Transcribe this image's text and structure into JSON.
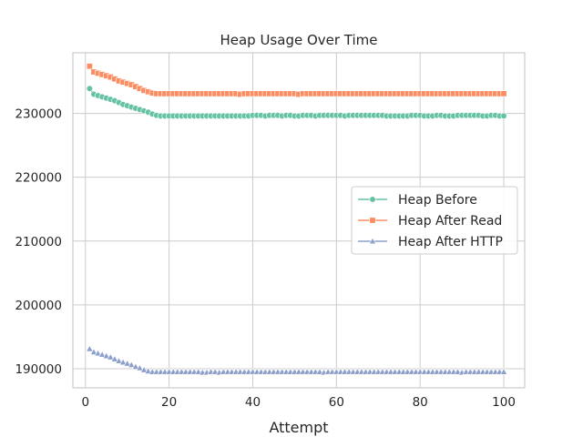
{
  "chart_data": {
    "type": "line",
    "title": "Heap Usage Over Time",
    "xlabel": "Attempt",
    "ylabel": "",
    "xlim": [
      -3,
      105
    ],
    "ylim": [
      187000,
      239500
    ],
    "x_ticks": [
      0,
      20,
      40,
      60,
      80,
      100
    ],
    "y_ticks": [
      190000,
      200000,
      210000,
      220000,
      230000
    ],
    "grid": true,
    "legend_position": "center-right",
    "x": [
      1,
      2,
      3,
      4,
      5,
      6,
      7,
      8,
      9,
      10,
      11,
      12,
      13,
      14,
      15,
      16,
      17,
      18,
      19,
      20,
      21,
      22,
      23,
      24,
      25,
      26,
      27,
      28,
      29,
      30,
      31,
      32,
      33,
      34,
      35,
      36,
      37,
      38,
      39,
      40,
      41,
      42,
      43,
      44,
      45,
      46,
      47,
      48,
      49,
      50,
      51,
      52,
      53,
      54,
      55,
      56,
      57,
      58,
      59,
      60,
      61,
      62,
      63,
      64,
      65,
      66,
      67,
      68,
      69,
      70,
      71,
      72,
      73,
      74,
      75,
      76,
      77,
      78,
      79,
      80,
      81,
      82,
      83,
      84,
      85,
      86,
      87,
      88,
      89,
      90,
      91,
      92,
      93,
      94,
      95,
      96,
      97,
      98,
      99,
      100
    ],
    "series": [
      {
        "name": "Heap Before",
        "color": "#66c2a5",
        "marker": "circle",
        "values": [
          233900,
          233000,
          232800,
          232600,
          232400,
          232200,
          232000,
          231700,
          231400,
          231200,
          231000,
          230800,
          230600,
          230400,
          230200,
          229900,
          229700,
          229600,
          229600,
          229600,
          229600,
          229600,
          229600,
          229600,
          229600,
          229600,
          229600,
          229600,
          229600,
          229600,
          229600,
          229600,
          229600,
          229600,
          229600,
          229600,
          229600,
          229600,
          229600,
          229700,
          229700,
          229700,
          229600,
          229700,
          229700,
          229700,
          229600,
          229700,
          229700,
          229600,
          229600,
          229700,
          229700,
          229700,
          229600,
          229700,
          229700,
          229700,
          229700,
          229700,
          229700,
          229600,
          229700,
          229700,
          229700,
          229700,
          229700,
          229700,
          229700,
          229700,
          229700,
          229600,
          229600,
          229600,
          229600,
          229600,
          229600,
          229700,
          229700,
          229700,
          229600,
          229600,
          229600,
          229700,
          229700,
          229600,
          229600,
          229600,
          229700,
          229700,
          229700,
          229700,
          229700,
          229700,
          229600,
          229600,
          229700,
          229700,
          229600,
          229600
        ]
      },
      {
        "name": "Heap After Read",
        "color": "#fc8d62",
        "marker": "square",
        "values": [
          237400,
          236500,
          236300,
          236100,
          235900,
          235700,
          235400,
          235100,
          234900,
          234700,
          234500,
          234200,
          233900,
          233600,
          233400,
          233200,
          233100,
          233100,
          233100,
          233100,
          233100,
          233100,
          233100,
          233100,
          233100,
          233100,
          233100,
          233100,
          233100,
          233100,
          233100,
          233100,
          233100,
          233100,
          233100,
          233100,
          233000,
          233100,
          233100,
          233100,
          233100,
          233100,
          233100,
          233100,
          233100,
          233100,
          233100,
          233100,
          233100,
          233100,
          233000,
          233100,
          233100,
          233100,
          233100,
          233100,
          233100,
          233100,
          233100,
          233100,
          233100,
          233100,
          233100,
          233100,
          233100,
          233100,
          233100,
          233100,
          233100,
          233100,
          233100,
          233100,
          233100,
          233100,
          233100,
          233100,
          233100,
          233100,
          233100,
          233100,
          233100,
          233100,
          233100,
          233100,
          233100,
          233100,
          233100,
          233100,
          233100,
          233100,
          233100,
          233100,
          233100,
          233100,
          233100,
          233100,
          233100,
          233100,
          233100,
          233100
        ]
      },
      {
        "name": "Heap After HTTP",
        "color": "#8da0cb",
        "marker": "triangle",
        "values": [
          193100,
          192600,
          192400,
          192200,
          192000,
          191800,
          191500,
          191200,
          191000,
          190800,
          190600,
          190300,
          190100,
          189800,
          189600,
          189500,
          189500,
          189500,
          189500,
          189500,
          189500,
          189500,
          189500,
          189500,
          189500,
          189500,
          189500,
          189400,
          189400,
          189500,
          189500,
          189400,
          189500,
          189500,
          189500,
          189500,
          189500,
          189500,
          189500,
          189500,
          189500,
          189500,
          189500,
          189500,
          189500,
          189500,
          189500,
          189500,
          189500,
          189500,
          189500,
          189500,
          189500,
          189500,
          189500,
          189500,
          189400,
          189500,
          189500,
          189500,
          189500,
          189500,
          189500,
          189500,
          189500,
          189500,
          189500,
          189500,
          189500,
          189500,
          189500,
          189500,
          189500,
          189500,
          189500,
          189500,
          189500,
          189500,
          189500,
          189500,
          189500,
          189500,
          189500,
          189500,
          189500,
          189500,
          189500,
          189500,
          189500,
          189400,
          189500,
          189500,
          189500,
          189500,
          189500,
          189500,
          189500,
          189500,
          189500,
          189500
        ]
      }
    ]
  }
}
